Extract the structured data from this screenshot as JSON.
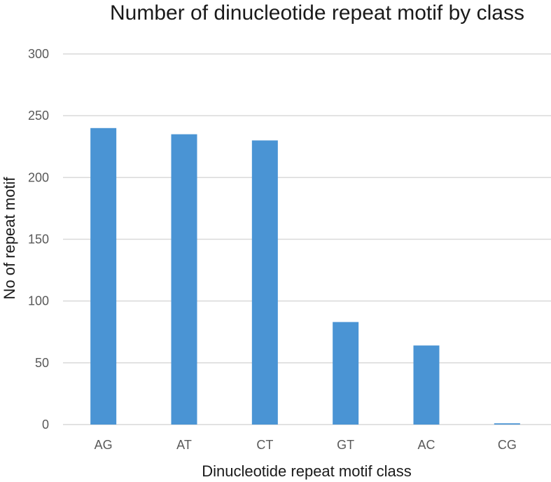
{
  "chart_data": {
    "type": "bar",
    "title": "Number of dinucleotide repeat motif by class",
    "xlabel": "Dinucleotide repeat motif class",
    "ylabel": "No of repeat motif",
    "categories": [
      "AG",
      "AT",
      "CT",
      "GT",
      "AC",
      "CG"
    ],
    "series": [
      {
        "values": [
          240,
          235,
          230,
          83,
          64,
          1
        ]
      }
    ],
    "ylim": [
      0,
      300
    ],
    "yticks": [
      0,
      50,
      100,
      150,
      200,
      250,
      300
    ],
    "grid": true,
    "legend": "none",
    "colors": {
      "bar": "#4a94d4",
      "grid": "#d9d9d9"
    }
  }
}
